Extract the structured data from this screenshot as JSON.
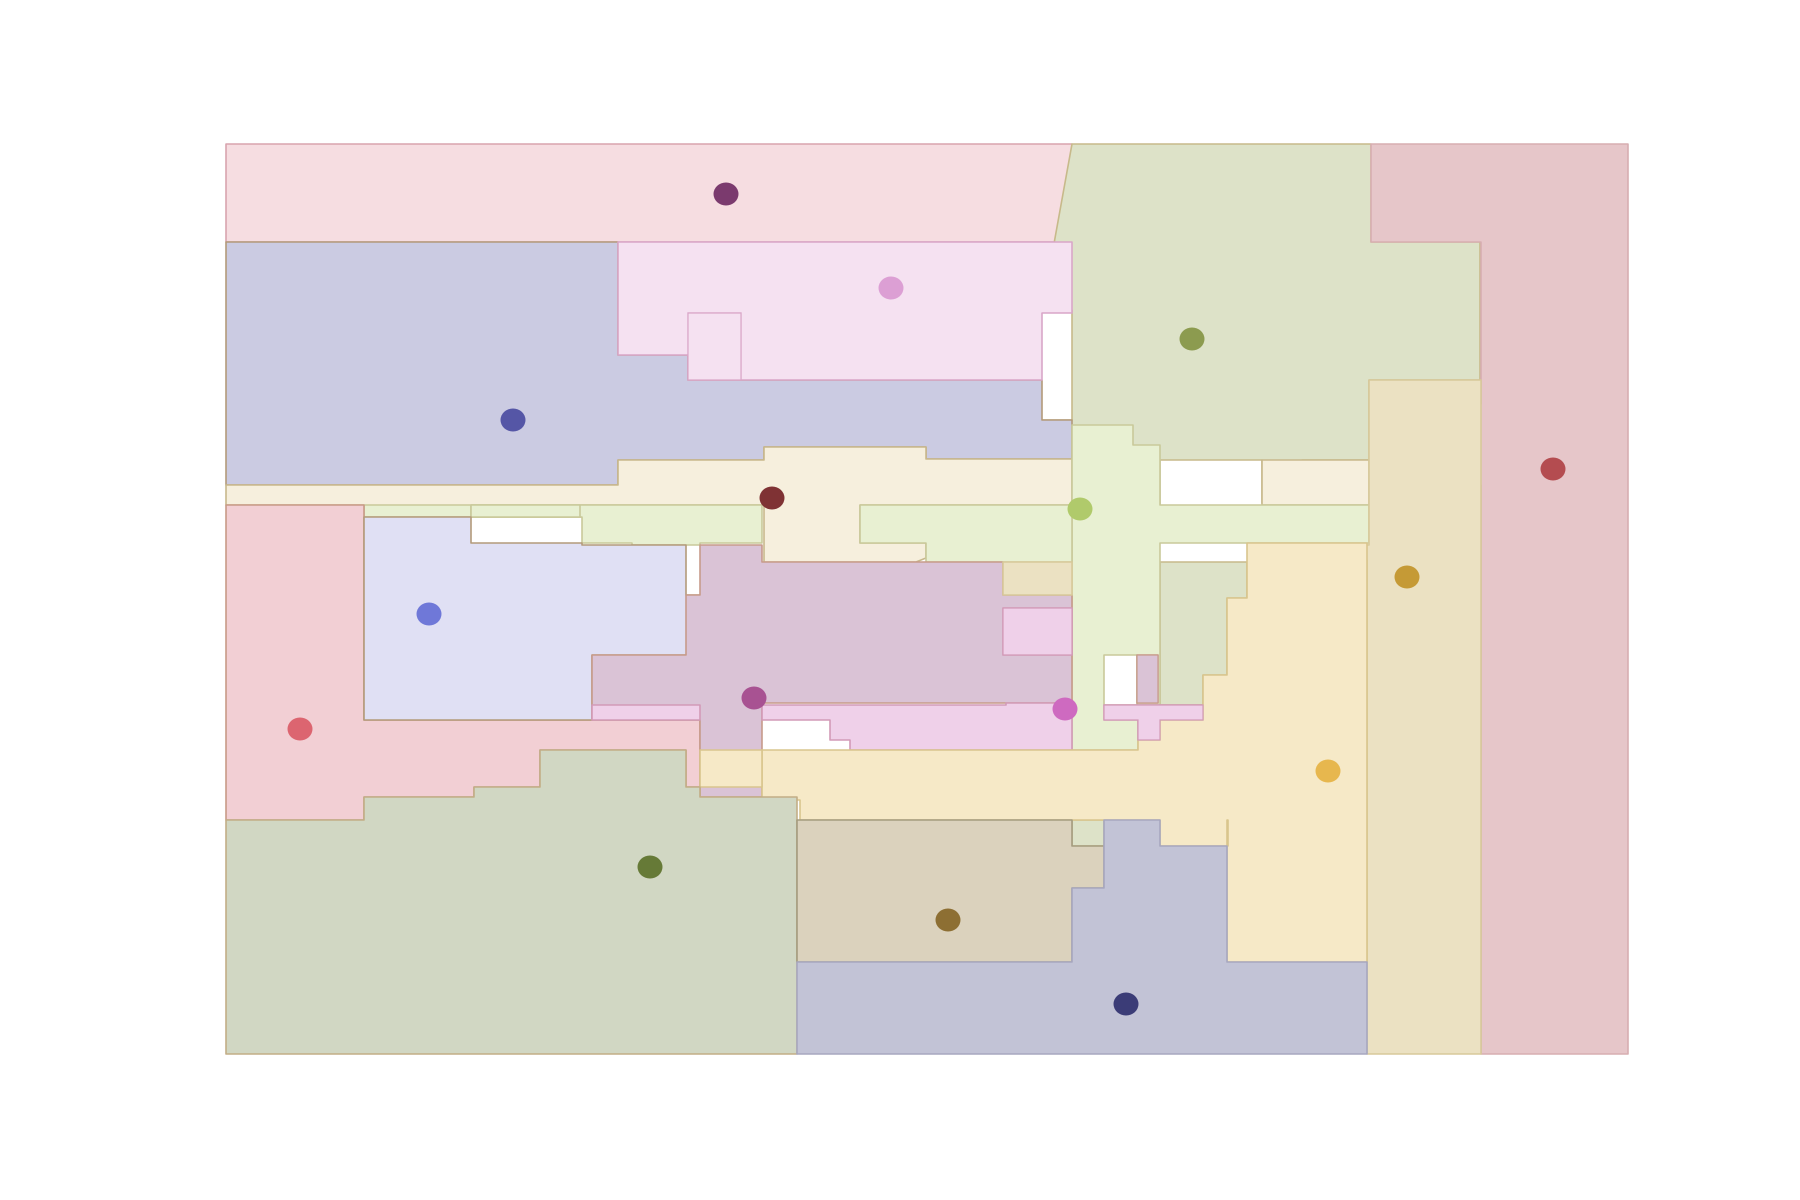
{
  "diagram": {
    "kind": "region partition with site markers",
    "background": "#ffffff",
    "regions": [
      {
        "id": "top-left-pink",
        "fill": "#f6dde1",
        "stroke": "#d8a4ae"
      },
      {
        "id": "top-right-sage",
        "fill": "#dde2c8",
        "stroke": "#c7b98a"
      },
      {
        "id": "far-right-rose",
        "fill": "#e6c6c9",
        "stroke": "#d7aeb1"
      },
      {
        "id": "upper-blue",
        "fill": "#cbcbe2",
        "stroke": "#b39a7a"
      },
      {
        "id": "upper-lilac",
        "fill": "#f5e1f1",
        "stroke": "#d9a6c8"
      },
      {
        "id": "middle-cream",
        "fill": "#f6efdd",
        "stroke": "#c8b88c"
      },
      {
        "id": "middle-light-green",
        "fill": "#e8f0d2",
        "stroke": "#c9c99a"
      },
      {
        "id": "left-pink",
        "fill": "#f2cfd4",
        "stroke": "#c89a86"
      },
      {
        "id": "left-lavender",
        "fill": "#e0e0f4",
        "stroke": "#b39a7a"
      },
      {
        "id": "center-mauve",
        "fill": "#dac3d6",
        "stroke": "#c79b8a"
      },
      {
        "id": "center-pink-strip",
        "fill": "#efd0e9",
        "stroke": "#d29ab7"
      },
      {
        "id": "right-beige-column",
        "fill": "#ebe1c2",
        "stroke": "#d8c99a"
      },
      {
        "id": "right-yellow",
        "fill": "#f6e9c7",
        "stroke": "#d9c58d"
      },
      {
        "id": "bottom-left-olive",
        "fill": "#d1d7c3",
        "stroke": "#c2ad86"
      },
      {
        "id": "bottom-tan",
        "fill": "#dbd2bd",
        "stroke": "#a49c7f"
      },
      {
        "id": "bottom-slate",
        "fill": "#c2c3d6",
        "stroke": "#a7a7bf"
      }
    ],
    "sites": [
      {
        "id": "site-1",
        "color": "#7b3a6e"
      },
      {
        "id": "site-2",
        "color": "#dc9fd4"
      },
      {
        "id": "site-3",
        "color": "#8c9b4f"
      },
      {
        "id": "site-4",
        "color": "#5556a6"
      },
      {
        "id": "site-5",
        "color": "#b44c50"
      },
      {
        "id": "site-6",
        "color": "#7f3234"
      },
      {
        "id": "site-7",
        "color": "#b0ca6b"
      },
      {
        "id": "site-8",
        "color": "#c59a36"
      },
      {
        "id": "site-9",
        "color": "#6f78d8"
      },
      {
        "id": "site-10",
        "color": "#a85292"
      },
      {
        "id": "site-11",
        "color": "#ce6ac0"
      },
      {
        "id": "site-12",
        "color": "#dc6570"
      },
      {
        "id": "site-13",
        "color": "#e7b74e"
      },
      {
        "id": "site-14",
        "color": "#667a37"
      },
      {
        "id": "site-15",
        "color": "#8d6f33"
      },
      {
        "id": "site-16",
        "color": "#3b3c77"
      }
    ]
  }
}
